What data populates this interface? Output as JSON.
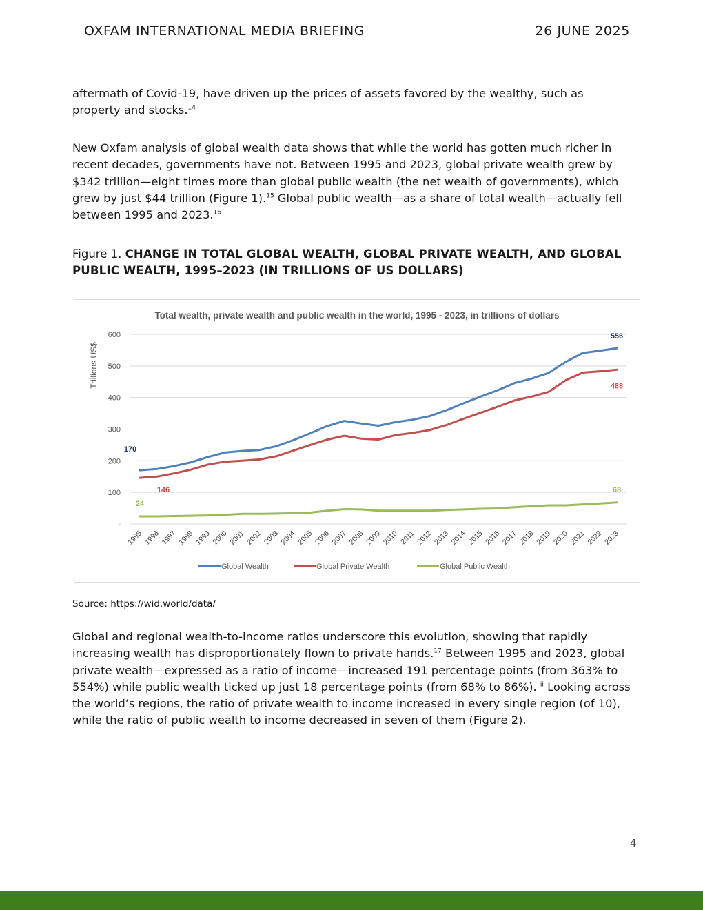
{
  "header": {
    "left": "OXFAM INTERNATIONAL MEDIA BRIEFING",
    "right": "26 JUNE 2025"
  },
  "para1": {
    "text": "aftermath of Covid-19, have driven up the prices of assets favored by the wealthy, such as property and stocks.",
    "sup": "14"
  },
  "para2": {
    "t1": "New Oxfam analysis of global wealth data shows that while the world has gotten much richer in recent decades, governments have not. Between 1995 and 2023, global private wealth grew by $342 trillion—eight times more than global public wealth (the net wealth of governments), which grew by just $44 trillion (Figure 1).",
    "sup1": "15",
    "t2": " Global public wealth—as a share of total wealth—actually fell between 1995 and 2023.",
    "sup2": "16"
  },
  "figure": {
    "label": "Figure 1. ",
    "title": "CHANGE IN TOTAL GLOBAL WEALTH, GLOBAL PRIVATE WEALTH, AND GLOBAL PUBLIC WEALTH, 1995–2023 (IN TRILLIONS OF US DOLLARS)"
  },
  "source": "Source: https://wid.world/data/",
  "para3": {
    "t1": "Global and regional wealth-to-income ratios underscore this evolution, showing that rapidly increasing wealth has disproportionately flown to private hands.",
    "sup1": "17",
    "t2": " Between 1995 and 2023, global private wealth—expressed as a ratio of income—increased 191 percentage points (from 363% to 554%) while public wealth ticked up just 18 percentage points (from 68% to 86%). ",
    "sup2": "ii",
    "t3": " Looking across the world’s regions, the ratio of private wealth to income increased in every single region (of 10), while the ratio of public wealth to income decreased in seven of them (Figure 2)."
  },
  "page_number": "4",
  "colors": {
    "global_wealth": "#4f81bd",
    "private_wealth": "#c0504d",
    "public_wealth": "#9bbb59",
    "footer_bar": "#3f7f1c"
  },
  "chart_data": {
    "type": "line",
    "title": "Total wealth, private wealth and public wealth in the world, 1995 - 2023, in trillions of dollars",
    "ylabel": "Trillions US$",
    "xlabel": "",
    "ylim": [
      0,
      600
    ],
    "yticks": [
      "-",
      "100",
      "200",
      "300",
      "400",
      "500",
      "600"
    ],
    "grid": true,
    "legend": "bottom",
    "categories": [
      "1995",
      "1996",
      "1997",
      "1998",
      "1999",
      "2000",
      "2001",
      "2002",
      "2003",
      "2004",
      "2005",
      "2006",
      "2007",
      "2008",
      "2009",
      "2010",
      "2011",
      "2012",
      "2013",
      "2014",
      "2015",
      "2016",
      "2017",
      "2018",
      "2019",
      "2020",
      "2021",
      "2022",
      "2023"
    ],
    "series": [
      {
        "name": "Global Wealth",
        "values": [
          170,
          174,
          183,
          195,
          212,
          226,
          231,
          234,
          246,
          265,
          287,
          310,
          326,
          318,
          311,
          322,
          330,
          341,
          360,
          382,
          403,
          423,
          446,
          460,
          478,
          513,
          541,
          548,
          556
        ],
        "labels": [
          {
            "index": 0,
            "text": "170"
          },
          {
            "index": 28,
            "text": "556"
          }
        ]
      },
      {
        "name": "Global Private Wealth",
        "values": [
          146,
          150,
          160,
          172,
          188,
          197,
          200,
          204,
          214,
          232,
          250,
          267,
          279,
          270,
          267,
          281,
          288,
          297,
          313,
          333,
          352,
          371,
          391,
          403,
          418,
          455,
          479,
          483,
          488
        ],
        "labels": [
          {
            "index": 0,
            "text": "146"
          },
          {
            "index": 28,
            "text": "488"
          }
        ]
      },
      {
        "name": "Global Public Wealth",
        "values": [
          24,
          24,
          25,
          26,
          27,
          29,
          32,
          32,
          33,
          34,
          36,
          42,
          47,
          46,
          42,
          42,
          42,
          42,
          44,
          46,
          48,
          49,
          53,
          56,
          59,
          59,
          62,
          65,
          68
        ],
        "labels": [
          {
            "index": 0,
            "text": "24"
          },
          {
            "index": 28,
            "text": "68"
          }
        ]
      }
    ]
  }
}
